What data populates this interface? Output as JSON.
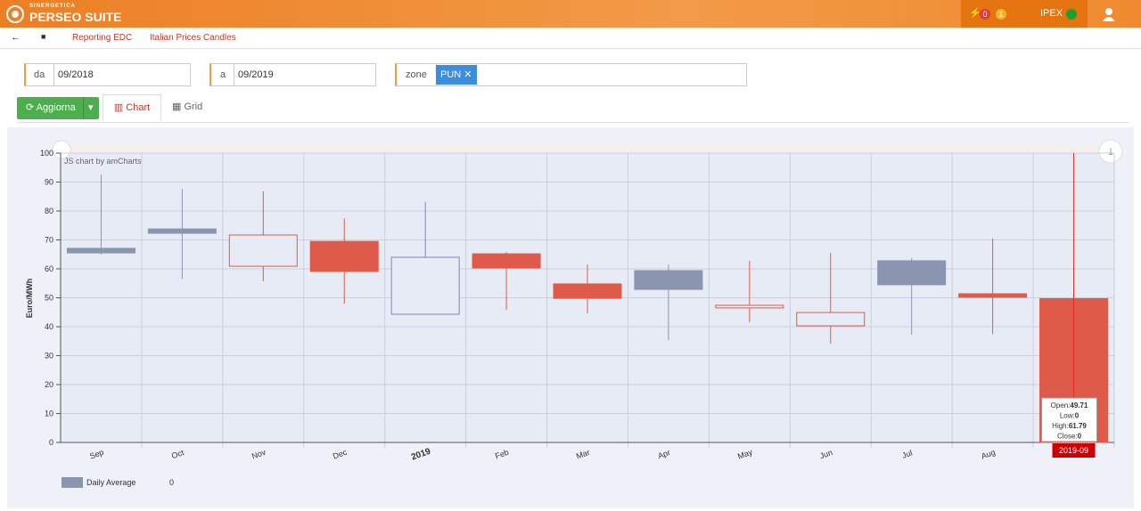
{
  "header": {
    "brand_small": "SINERGETICA",
    "brand": "PERSEO SUITE",
    "alerts": [
      0,
      1
    ],
    "market": "IPEX"
  },
  "breadcrumb": [
    "Reporting EDC",
    "Italian Prices Candles"
  ],
  "filters": {
    "from_label": "da",
    "from": "09/2018",
    "to_label": "a",
    "to": "09/2019",
    "zone_label": "zone",
    "zone": "PUN"
  },
  "toolbar": {
    "refresh": "Aggiorna",
    "tabs": [
      "Chart",
      "Grid"
    ]
  },
  "chart_data": {
    "type": "candlestick",
    "credit": "JS chart by amCharts",
    "y_label": "Euro/MWh",
    "categories": [
      "Sep",
      "Oct",
      "Nov",
      "Dec",
      "2019",
      "Feb",
      "Mar",
      "Apr",
      "May",
      "Jun",
      "Jul",
      "Aug",
      "2019-09"
    ],
    "series": [
      {
        "name": "Daily Average",
        "color": "#8a96b0",
        "open": [
          67.1,
          73.8,
          60.9,
          69.5,
          44.3,
          65.2,
          54.8,
          59.4,
          46.5,
          40.3,
          62.8,
          51.4,
          49.71
        ],
        "high": [
          92.6,
          87.7,
          86.8,
          77.5,
          83.1,
          65.8,
          61.5,
          61.5,
          62.8,
          65.5,
          63.7,
          70.5,
          61.79
        ],
        "low": [
          64.9,
          56.6,
          55.7,
          48.0,
          44.3,
          45.8,
          44.6,
          35.4,
          41.5,
          34.2,
          37.2,
          37.5,
          0
        ],
        "close": [
          65.5,
          72.3,
          71.7,
          59.1,
          64.0,
          60.3,
          49.8,
          52.9,
          47.4,
          44.9,
          54.5,
          50.2,
          0
        ],
        "colors": [
          "#8a96b0",
          "#8a96b0",
          "#e05a4a",
          "#e05a4a",
          "#7c86b8",
          "#e05a4a",
          "#e05a4a",
          "#8a96b0",
          "#e05a4a",
          "#e05a4a",
          "#8a96b0",
          "#e05a4a",
          "#e05a4a"
        ]
      }
    ],
    "legend_value": 0,
    "ylim": [
      0,
      100
    ],
    "yticks": [
      0,
      10,
      20,
      30,
      40,
      50,
      60,
      70,
      80,
      90,
      100
    ],
    "grid": true,
    "cursor_index": 12,
    "tooltip_labels": [
      "Open:",
      "Low:",
      "High:",
      "Close:"
    ]
  }
}
